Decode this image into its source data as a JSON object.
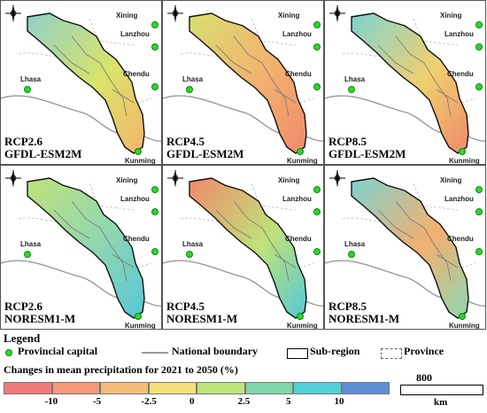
{
  "panels": [
    {
      "scenario": "RCP2.6",
      "model": "GFDL-ESM2M",
      "fill": [
        "#8fd0c8",
        "#d9e46a",
        "#f5b46a"
      ]
    },
    {
      "scenario": "RCP4.5",
      "model": "GFDL-ESM2M",
      "fill": [
        "#d8e070",
        "#f3b070",
        "#f08a6a"
      ]
    },
    {
      "scenario": "RCP8.5",
      "model": "GFDL-ESM2M",
      "fill": [
        "#7ed3d0",
        "#f0d070",
        "#f08a6a"
      ]
    },
    {
      "scenario": "RCP2.6",
      "model": "NORESM1-M",
      "fill": [
        "#bfe27a",
        "#8fd6b2",
        "#55c8d6"
      ]
    },
    {
      "scenario": "RCP4.5",
      "model": "NORESM1-M",
      "fill": [
        "#f08a6a",
        "#bfe27a",
        "#55c8d6"
      ]
    },
    {
      "scenario": "RCP8.5",
      "model": "NORESM1-M",
      "fill": [
        "#7ed3d0",
        "#f3b070",
        "#8fd6b2"
      ]
    }
  ],
  "cities": {
    "xining": "Xining",
    "lanzhou": "Lanzhou",
    "chendu": "Chendu",
    "lhasa": "Lhasa",
    "kunming": "Kunming"
  },
  "legend": {
    "title": "Legend",
    "capital": "Provincial capital",
    "boundary": "National boundary",
    "subregion": "Sub-region",
    "province": "Province",
    "colorbar_title": "Changes in mean precipitation  for 2021 to 2050 (%)",
    "ticks": [
      "-10",
      "-5",
      "-2.5",
      "0",
      "2.5",
      "5",
      "10"
    ],
    "colors": [
      "#f07a7a",
      "#f39a78",
      "#f5bd78",
      "#f5e07a",
      "#bfe27a",
      "#7fd6a8",
      "#4fd0d6",
      "#5d8ed8"
    ],
    "scale_value": "800",
    "scale_unit": "km"
  }
}
